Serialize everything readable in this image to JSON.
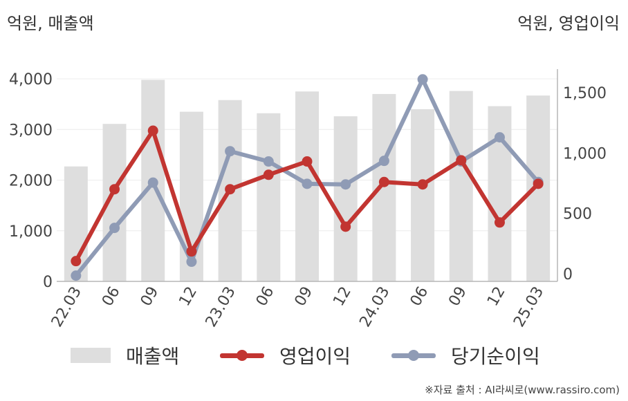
{
  "unit_left": "억원, 매출액",
  "unit_right": "억원, 영업이익",
  "source": "※자료 출처 : AI라씨로(www.rassiro.com)",
  "chart_data": {
    "type": "bar",
    "categories": [
      "22.03",
      "06",
      "09",
      "12",
      "23.03",
      "06",
      "09",
      "12",
      "24.03",
      "06",
      "09",
      "12",
      "25.03"
    ],
    "series": [
      {
        "name": "매출액",
        "type": "bar",
        "axis": "left",
        "color": "#dedede",
        "values": [
          2270,
          3110,
          3980,
          3350,
          3580,
          3320,
          3750,
          3260,
          3700,
          3400,
          3760,
          3460,
          3670
        ]
      },
      {
        "name": "영업이익",
        "type": "line",
        "axis": "right",
        "color": "#c23531",
        "values": [
          105,
          700,
          1185,
          185,
          700,
          820,
          930,
          390,
          760,
          740,
          940,
          425,
          745
        ]
      },
      {
        "name": "당기순이익",
        "type": "line",
        "axis": "right",
        "color": "#8f9bb5",
        "values": [
          -15,
          380,
          755,
          100,
          1015,
          930,
          745,
          740,
          935,
          1610,
          930,
          1130,
          760
        ]
      }
    ],
    "y_left": {
      "min": 0,
      "max": 4000,
      "ticks": [
        0,
        1000,
        2000,
        3000,
        4000
      ],
      "tick_labels": [
        "0",
        "1,000",
        "2,000",
        "3,000",
        "4,000"
      ]
    },
    "y_right": {
      "min": -100,
      "max": 1600,
      "ticks": [
        0,
        500,
        1000,
        1500
      ],
      "tick_labels": [
        "0",
        "500",
        "1,000",
        "1,500"
      ]
    },
    "grid": true,
    "legend_position": "bottom"
  }
}
